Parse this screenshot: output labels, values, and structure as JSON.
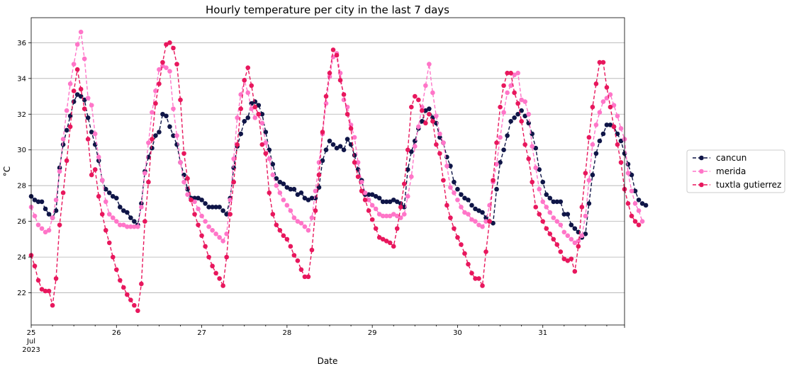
{
  "chart_data": {
    "type": "line",
    "title": "Hourly temperature per city in the last 7 days",
    "xlabel": "Date",
    "ylabel": "°C",
    "xlim": [
      0,
      167
    ],
    "ylim": [
      20.2,
      37.4
    ],
    "grid": "horizontal",
    "legend_position": "right",
    "x_ticks": [
      {
        "x": 0,
        "lines": [
          "25",
          "Jul",
          "2023"
        ]
      },
      {
        "x": 24,
        "lines": [
          "26"
        ]
      },
      {
        "x": 48,
        "lines": [
          "27"
        ]
      },
      {
        "x": 72,
        "lines": [
          "28"
        ]
      },
      {
        "x": 96,
        "lines": [
          "29"
        ]
      },
      {
        "x": 120,
        "lines": [
          "30"
        ]
      },
      {
        "x": 144,
        "lines": [
          "31"
        ]
      }
    ],
    "y_ticks": [
      22,
      24,
      26,
      28,
      30,
      32,
      34,
      36
    ],
    "x_hours_per_point": 1,
    "series": [
      {
        "name": "cancun",
        "color": "#0f1547",
        "values": [
          27.4,
          27.2,
          27.1,
          27.1,
          26.7,
          26.4,
          26.2,
          26.6,
          29.0,
          30.3,
          31.1,
          31.9,
          32.7,
          33.1,
          33.0,
          32.8,
          31.8,
          31.0,
          30.3,
          29.4,
          28.3,
          27.8,
          27.6,
          27.4,
          27.3,
          26.8,
          26.6,
          26.5,
          26.2,
          26.0,
          25.8,
          27.0,
          28.8,
          29.6,
          30.1,
          30.8,
          31.0,
          32.0,
          31.9,
          31.3,
          30.8,
          30.3,
          29.3,
          28.6,
          27.8,
          27.3,
          27.3,
          27.3,
          27.2,
          27.0,
          26.8,
          26.8,
          26.8,
          26.8,
          26.6,
          26.4,
          27.3,
          29.0,
          30.2,
          30.9,
          31.6,
          31.8,
          32.6,
          32.7,
          32.5,
          32.0,
          31.0,
          30.0,
          29.2,
          28.4,
          28.2,
          28.1,
          27.9,
          27.8,
          27.8,
          27.5,
          27.6,
          27.3,
          27.2,
          27.3,
          27.3,
          27.9,
          29.4,
          30.0,
          30.5,
          30.3,
          30.1,
          30.2,
          30.0,
          30.6,
          30.3,
          29.7,
          28.9,
          28.3,
          27.5,
          27.5,
          27.5,
          27.4,
          27.3,
          27.1,
          27.1,
          27.1,
          27.2,
          27.1,
          27.0,
          26.8,
          28.9,
          29.9,
          30.5,
          31.2,
          31.6,
          32.2,
          32.3,
          31.8,
          31.5,
          30.7,
          30.4,
          29.6,
          29.1,
          28.2,
          27.8,
          27.5,
          27.3,
          27.2,
          26.9,
          26.7,
          26.6,
          26.5,
          26.2,
          26.0,
          25.9,
          27.8,
          29.3,
          30.0,
          30.8,
          31.6,
          31.8,
          32.0,
          32.2,
          31.9,
          31.5,
          30.9,
          30.1,
          28.9,
          28.2,
          27.5,
          27.3,
          27.1,
          27.1,
          27.1,
          26.4,
          26.4,
          25.8,
          25.6,
          25.4,
          25.1,
          25.3,
          27.0,
          28.6,
          29.8,
          30.5,
          30.9,
          31.4,
          31.4,
          31.3,
          30.9,
          30.5,
          29.8,
          29.2,
          28.6,
          27.7,
          27.2,
          27.0,
          26.9
        ]
      },
      {
        "name": "merida",
        "color": "#ff75c8",
        "values": [
          26.8,
          26.3,
          25.8,
          25.6,
          25.4,
          25.5,
          26.2,
          27.2,
          28.8,
          30.6,
          32.2,
          33.7,
          34.8,
          35.9,
          36.6,
          35.1,
          32.9,
          32.5,
          30.9,
          29.6,
          28.3,
          27.1,
          26.4,
          26.2,
          26.0,
          25.8,
          25.8,
          25.7,
          25.7,
          25.7,
          25.7,
          26.8,
          28.7,
          30.4,
          32.1,
          33.3,
          34.5,
          34.7,
          34.6,
          34.4,
          32.3,
          30.8,
          29.3,
          28.2,
          27.5,
          27.2,
          27.1,
          26.7,
          26.3,
          26.0,
          25.7,
          25.5,
          25.3,
          25.1,
          24.9,
          25.3,
          27.2,
          29.5,
          31.8,
          33.1,
          33.9,
          33.2,
          32.3,
          31.8,
          32.0,
          31.5,
          30.4,
          29.5,
          28.6,
          28.0,
          27.6,
          27.2,
          26.9,
          26.6,
          26.2,
          26.0,
          25.9,
          25.7,
          25.5,
          26.2,
          27.7,
          29.3,
          30.9,
          32.6,
          34.1,
          35.2,
          35.4,
          34.3,
          32.8,
          32.4,
          31.4,
          30.7,
          29.3,
          28.2,
          27.6,
          27.2,
          26.9,
          26.7,
          26.4,
          26.3,
          26.3,
          26.3,
          26.4,
          26.3,
          26.2,
          26.4,
          27.4,
          28.5,
          30.2,
          31.3,
          32.4,
          33.6,
          34.8,
          33.2,
          31.9,
          30.9,
          30.4,
          29.1,
          27.9,
          27.6,
          27.2,
          26.8,
          26.5,
          26.4,
          26.1,
          26.0,
          25.8,
          25.7,
          26.0,
          26.9,
          28.2,
          29.2,
          30.7,
          32.1,
          33.2,
          33.6,
          34.2,
          34.3,
          32.8,
          32.7,
          32.0,
          30.2,
          29.0,
          27.8,
          27.1,
          26.8,
          26.5,
          26.2,
          26.0,
          25.8,
          25.4,
          25.2,
          25.0,
          24.8,
          24.9,
          25.2,
          26.3,
          28.3,
          30.3,
          31.4,
          32.1,
          32.7,
          32.9,
          33.1,
          32.5,
          31.9,
          31.2,
          30.6,
          28.7,
          27.7,
          27.0,
          26.6,
          26.0
        ]
      },
      {
        "name": "tuxtla gutierrez",
        "color": "#e8175d",
        "values": [
          24.1,
          23.5,
          22.7,
          22.2,
          22.1,
          22.1,
          21.3,
          22.8,
          25.8,
          27.6,
          29.4,
          31.3,
          33.3,
          34.5,
          33.4,
          32.3,
          30.6,
          28.6,
          28.9,
          27.4,
          26.4,
          25.5,
          24.8,
          24.0,
          23.3,
          22.7,
          22.3,
          21.9,
          21.6,
          21.3,
          21.0,
          22.5,
          26.0,
          28.2,
          30.6,
          32.6,
          33.7,
          34.9,
          35.9,
          36.0,
          35.7,
          34.8,
          32.8,
          29.8,
          28.4,
          27.2,
          26.4,
          25.8,
          25.2,
          24.6,
          24.0,
          23.5,
          23.1,
          22.8,
          22.4,
          24.0,
          26.4,
          28.2,
          30.3,
          32.3,
          33.9,
          34.6,
          33.6,
          32.4,
          32.0,
          30.3,
          29.8,
          27.6,
          26.4,
          25.8,
          25.5,
          25.2,
          25.0,
          24.6,
          24.1,
          23.8,
          23.3,
          22.9,
          22.9,
          24.4,
          26.6,
          28.6,
          31.0,
          33.0,
          34.3,
          35.6,
          35.3,
          33.9,
          33.1,
          32.0,
          31.2,
          29.3,
          28.5,
          27.7,
          27.2,
          26.6,
          26.1,
          25.6,
          25.1,
          25.0,
          24.9,
          24.8,
          24.6,
          25.6,
          26.8,
          28.1,
          30.0,
          32.4,
          33.0,
          32.8,
          32.2,
          31.5,
          32.0,
          31.6,
          30.3,
          29.8,
          28.3,
          26.9,
          26.2,
          25.6,
          25.1,
          24.7,
          24.2,
          23.6,
          23.1,
          22.8,
          22.8,
          22.4,
          24.3,
          26.0,
          28.3,
          30.4,
          32.4,
          33.6,
          34.3,
          34.3,
          33.2,
          32.6,
          31.6,
          30.3,
          29.5,
          28.2,
          26.8,
          26.4,
          26.0,
          25.6,
          25.3,
          25.0,
          24.7,
          24.3,
          23.9,
          23.8,
          23.9,
          23.2,
          24.6,
          26.8,
          28.7,
          30.7,
          32.4,
          33.7,
          34.9,
          34.9,
          33.5,
          32.4,
          31.3,
          30.3,
          29.3,
          27.8,
          27.0,
          26.3,
          26.0,
          25.8
        ]
      }
    ]
  }
}
